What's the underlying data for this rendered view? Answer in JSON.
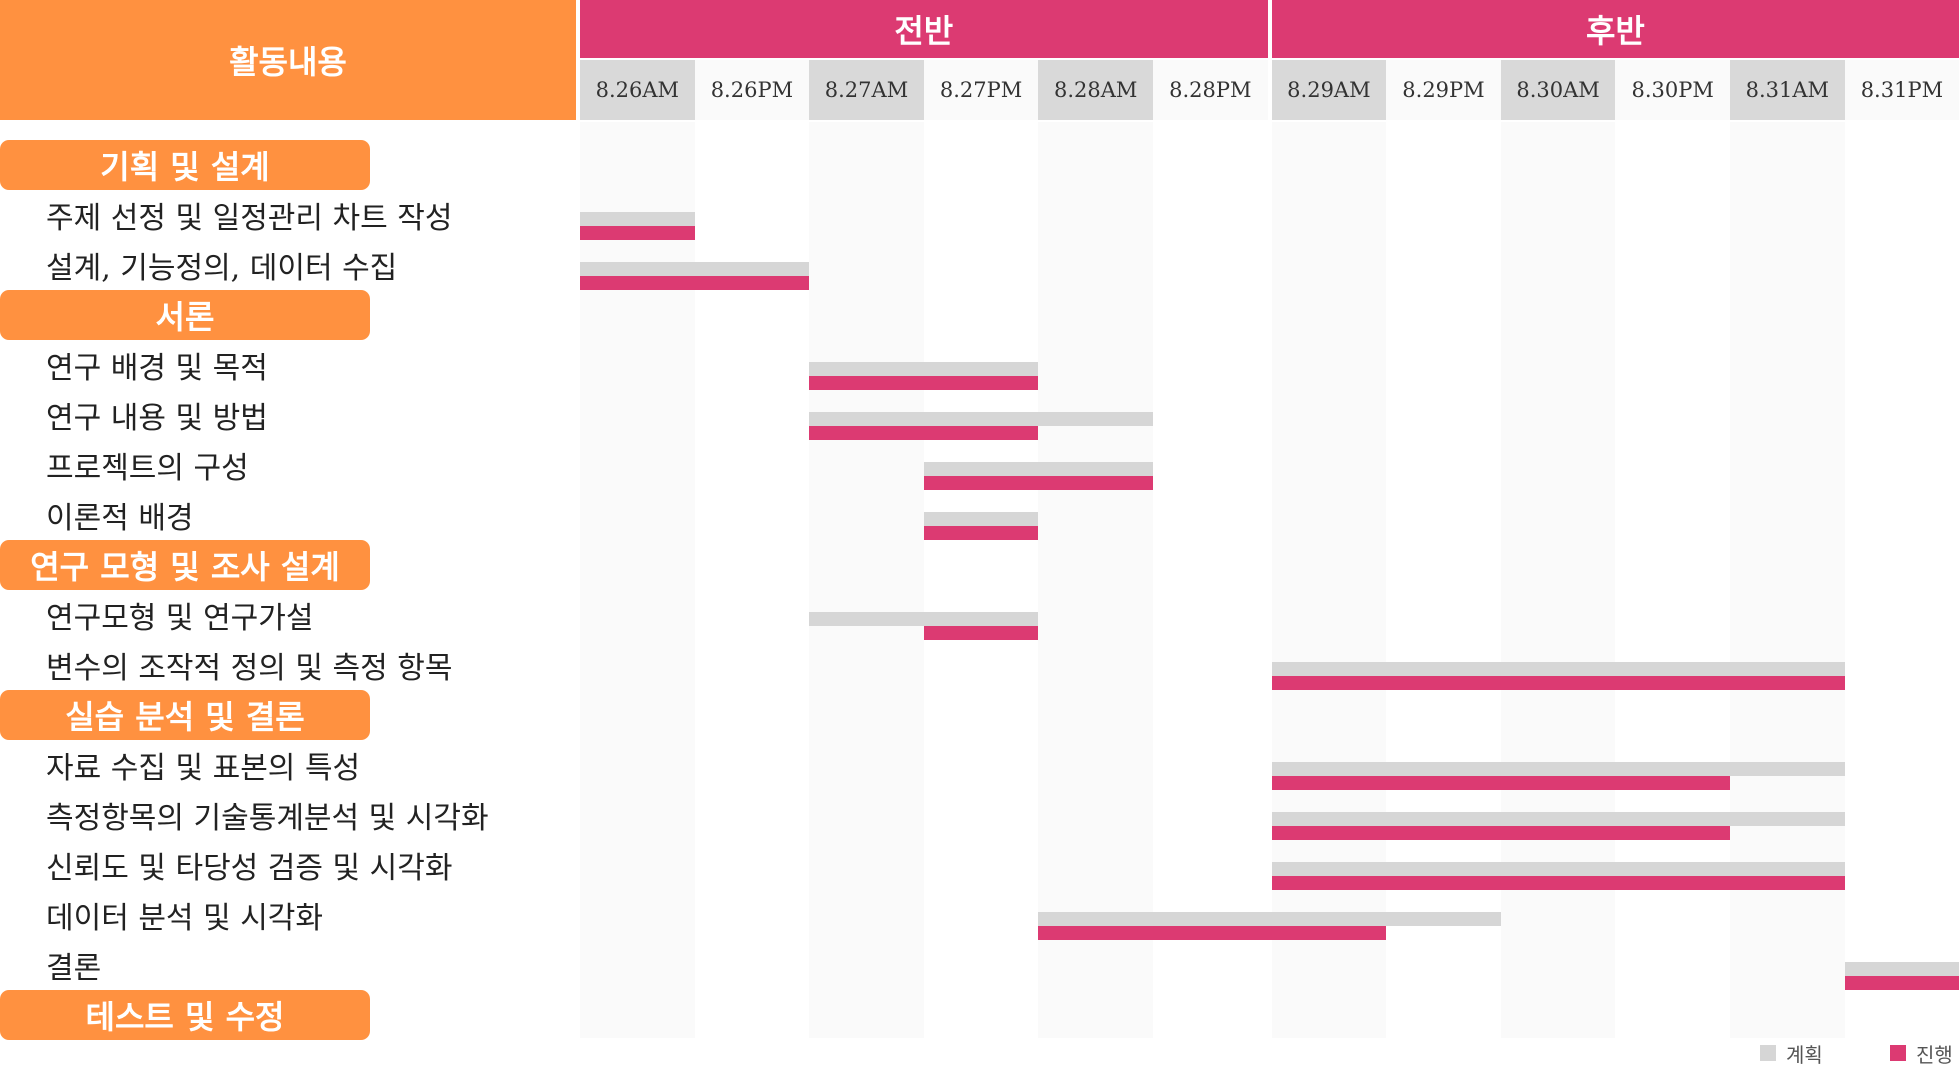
{
  "chart_data": {
    "type": "gantt",
    "header": {
      "activity": "활동내용",
      "halves": [
        "전반",
        "후반"
      ]
    },
    "x": [
      "8.26AM",
      "8.26PM",
      "8.27AM",
      "8.27PM",
      "8.28AM",
      "8.28PM",
      "8.29AM",
      "8.29PM",
      "8.30AM",
      "8.30PM",
      "8.31AM",
      "8.31PM"
    ],
    "legend": [
      "계획",
      "진행"
    ],
    "colors": {
      "header": "#ff9140",
      "half_header": "#dc3a72",
      "planned": "#d6d6d6",
      "actual": "#dc3a72"
    },
    "rows": [
      {
        "kind": "category",
        "label": "기획 및 설계"
      },
      {
        "kind": "task",
        "label": "주제 선정 및 일정관리 차트 작성",
        "planned": [
          "8.26AM",
          "8.26AM"
        ],
        "actual": [
          "8.26AM",
          "8.26AM"
        ]
      },
      {
        "kind": "task",
        "label": "설계, 기능정의, 데이터 수집",
        "planned": [
          "8.26AM",
          "8.26PM"
        ],
        "actual": [
          "8.26AM",
          "8.26PM"
        ]
      },
      {
        "kind": "category",
        "label": "서론"
      },
      {
        "kind": "task",
        "label": "연구 배경 및 목적",
        "planned": [
          "8.27AM",
          "8.27PM"
        ],
        "actual": [
          "8.27AM",
          "8.27PM"
        ]
      },
      {
        "kind": "task",
        "label": "연구 내용 및 방법",
        "planned": [
          "8.27AM",
          "8.28AM"
        ],
        "actual": [
          "8.27AM",
          "8.27PM"
        ]
      },
      {
        "kind": "task",
        "label": "프로젝트의 구성",
        "planned": [
          "8.27PM",
          "8.28AM"
        ],
        "actual": [
          "8.27PM",
          "8.28AM"
        ]
      },
      {
        "kind": "task",
        "label": "이론적 배경",
        "planned": [
          "8.27PM",
          "8.27PM"
        ],
        "actual": [
          "8.27PM",
          "8.27PM"
        ]
      },
      {
        "kind": "category",
        "label": "연구 모형 및 조사 설계"
      },
      {
        "kind": "task",
        "label": "연구모형 및 연구가설",
        "planned": [
          "8.27AM",
          "8.27PM"
        ],
        "actual": [
          "8.27PM",
          "8.27PM"
        ]
      },
      {
        "kind": "task",
        "label": "변수의 조작적 정의 및 측정 항목",
        "planned": [
          "8.29AM",
          "8.31AM"
        ],
        "actual": [
          "8.29AM",
          "8.31AM"
        ]
      },
      {
        "kind": "category",
        "label": "실습 분석 및 결론"
      },
      {
        "kind": "task",
        "label": "자료 수집 및 표본의 특성",
        "planned": [
          "8.29AM",
          "8.31AM"
        ],
        "actual": [
          "8.29AM",
          "8.30PM"
        ]
      },
      {
        "kind": "task",
        "label": "측정항목의 기술통계분석 및 시각화",
        "planned": [
          "8.29AM",
          "8.31AM"
        ],
        "actual": [
          "8.29AM",
          "8.30PM"
        ]
      },
      {
        "kind": "task",
        "label": "신뢰도 및 타당성 검증 및 시각화",
        "planned": [
          "8.29AM",
          "8.31AM"
        ],
        "actual": [
          "8.29AM",
          "8.31AM"
        ]
      },
      {
        "kind": "task",
        "label": "데이터 분석 및 시각화",
        "planned": [
          "8.28AM",
          "8.29PM"
        ],
        "actual": [
          "8.28AM",
          "8.29AM"
        ]
      },
      {
        "kind": "task",
        "label": "결론",
        "planned": [
          "8.31PM",
          "8.31PM"
        ],
        "actual": [
          "8.31PM",
          "8.31PM"
        ]
      },
      {
        "kind": "category",
        "label": "테스트 및 수정"
      }
    ]
  }
}
